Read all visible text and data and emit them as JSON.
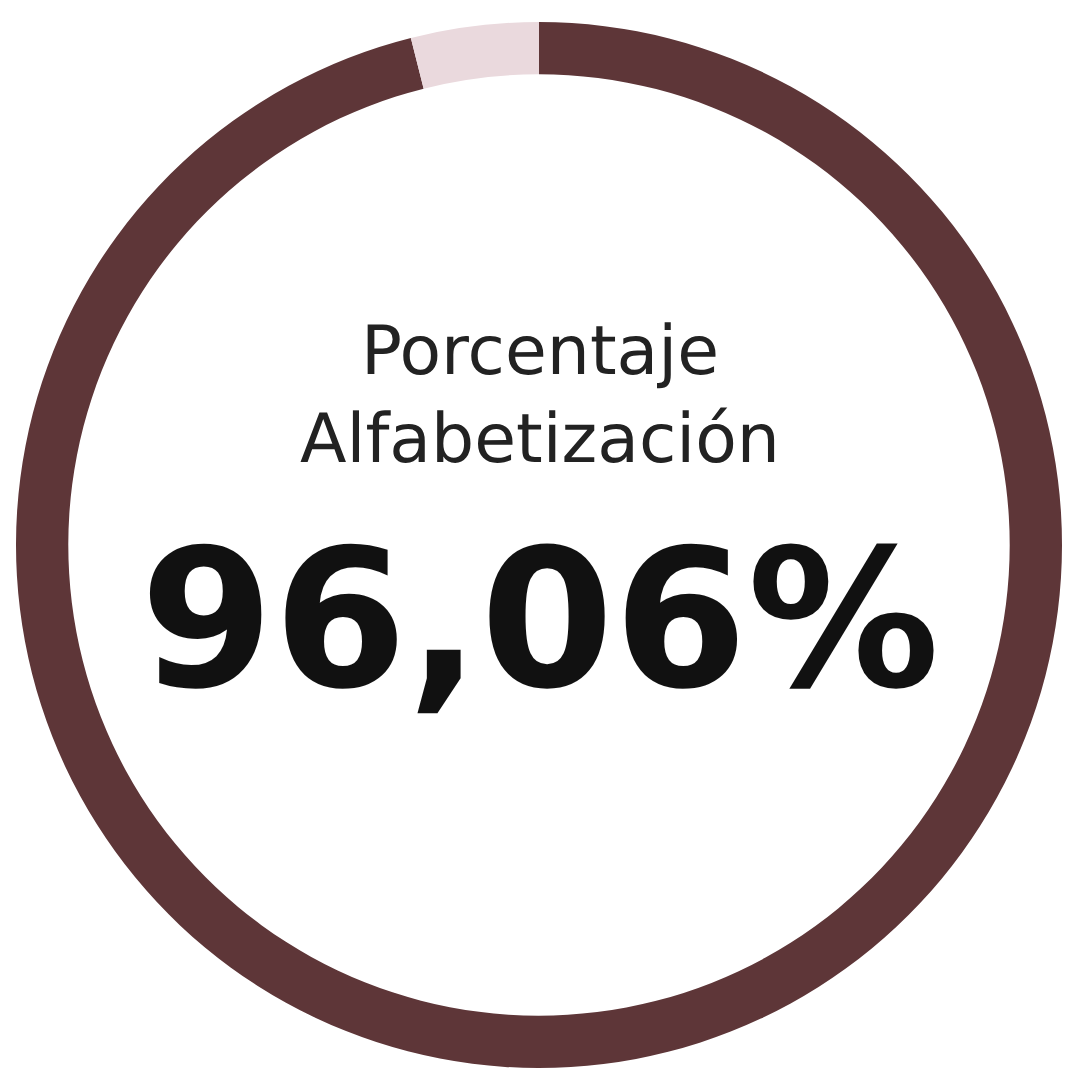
{
  "chart_data": {
    "type": "donut",
    "title": "Porcentaje Alfabetización",
    "categories": [
      null,
      null
    ],
    "values": [
      96.06,
      3.94
    ],
    "colors": [
      "#5e3638",
      "#ead9dd"
    ],
    "value_labels": [
      "96,06%",
      null
    ]
  }
}
